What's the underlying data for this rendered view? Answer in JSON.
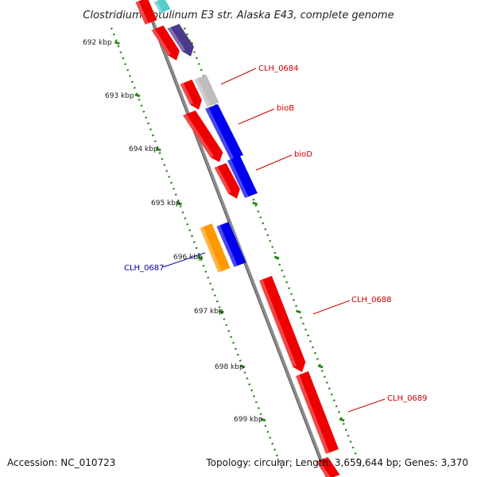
{
  "title": "Clostridium botulinum E3 str. Alaska E43, complete genome",
  "footer": {
    "accession": "Accession: NC_010723",
    "summary": "Topology: circular; Length: 3,659,644 bp; Genes: 3,370"
  },
  "ticks": [
    {
      "label": "692 kbp"
    },
    {
      "label": "693 kbp"
    },
    {
      "label": "694 kbp"
    },
    {
      "label": "695 kbp"
    },
    {
      "label": "696 kbp"
    },
    {
      "label": "697 kbp"
    },
    {
      "label": "698 kbp"
    },
    {
      "label": "699 kbp"
    }
  ],
  "gene_labels": [
    {
      "text": "CLH_0684",
      "color": "#cc0000"
    },
    {
      "text": "bioB",
      "color": "#cc0000"
    },
    {
      "text": "bioD",
      "color": "#cc0000"
    },
    {
      "text": "CLH_0687",
      "color": "#000099"
    },
    {
      "text": "CLH_0688",
      "color": "#cc0000"
    },
    {
      "text": "CLH_0689",
      "color": "#cc0000"
    }
  ],
  "colors": {
    "backbone": "#8a8a8a",
    "tick": "#2a8a1a",
    "red_gene": "#ee0000",
    "blue_gene": "#0000ee",
    "purple_gene": "#4b3a8c",
    "grey_gene": "#bdbdbd",
    "orange_gene": "#ff9900",
    "cyan_gene": "#55cccc"
  }
}
